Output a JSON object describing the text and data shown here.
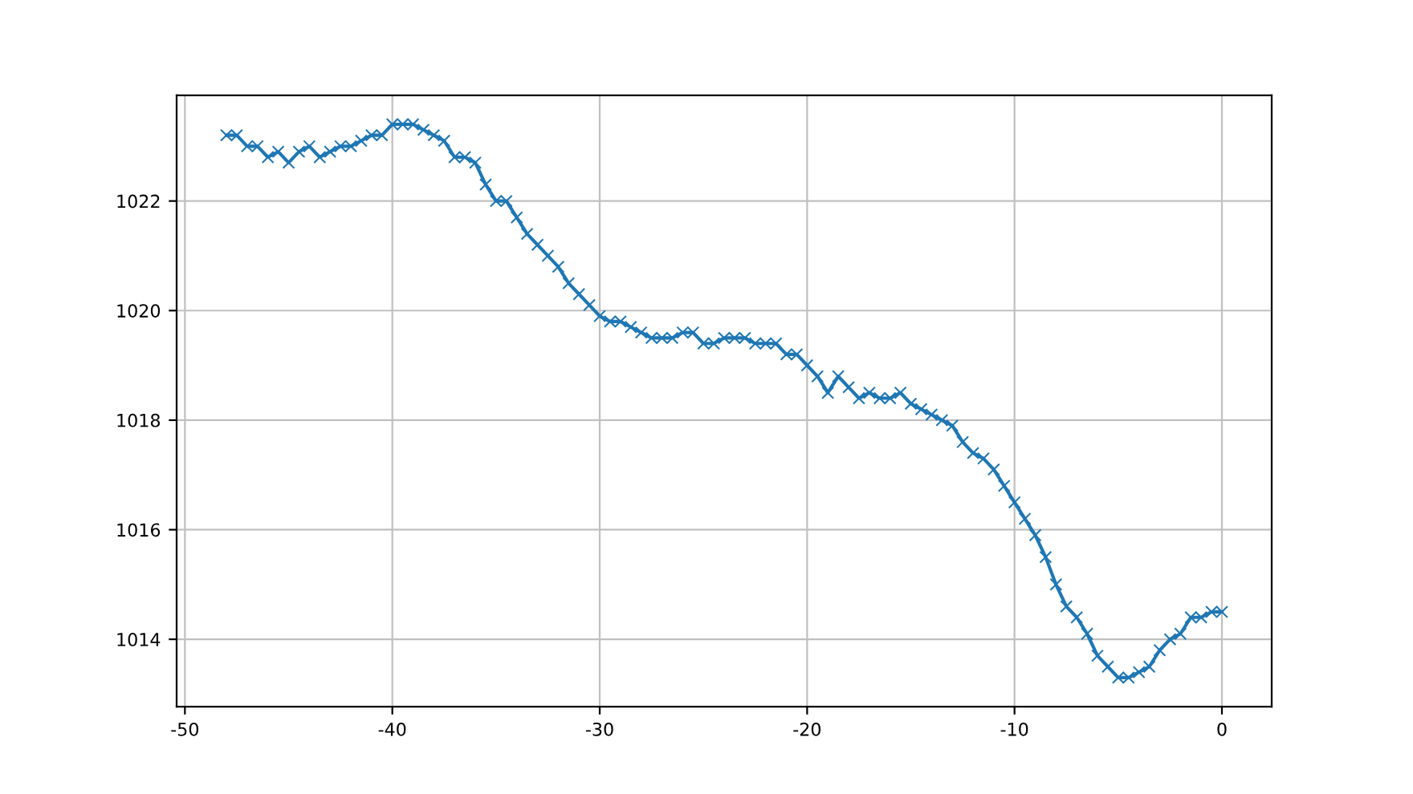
{
  "chart_data": {
    "type": "line",
    "marker": "cross",
    "line_style": "solid",
    "grid": true,
    "xlim": [
      -50.4,
      2.4
    ],
    "ylim": [
      1012.77,
      1023.93
    ],
    "xticks": [
      -50,
      -40,
      -30,
      -20,
      -10,
      0
    ],
    "yticks": [
      1014,
      1016,
      1018,
      1020,
      1022
    ],
    "x": [
      -48,
      -47.5,
      -47,
      -46.5,
      -46,
      -45.5,
      -45,
      -44.5,
      -44,
      -43.5,
      -43,
      -42.5,
      -42,
      -41.5,
      -41,
      -40.5,
      -40,
      -39.5,
      -39,
      -38.5,
      -38,
      -37.5,
      -37,
      -36.5,
      -36,
      -35.5,
      -35,
      -34.5,
      -34,
      -33.5,
      -33,
      -32.5,
      -32,
      -31.5,
      -31,
      -30.5,
      -30,
      -29.5,
      -29,
      -28.5,
      -28,
      -27.5,
      -27,
      -26.5,
      -26,
      -25.5,
      -25,
      -24.5,
      -24,
      -23.5,
      -23,
      -22.5,
      -22,
      -21.5,
      -21,
      -20.5,
      -20,
      -19.5,
      -19,
      -18.5,
      -18,
      -17.5,
      -17,
      -16.5,
      -16,
      -15.5,
      -15,
      -14.5,
      -14,
      -13.5,
      -13,
      -12.5,
      -12,
      -11.5,
      -11,
      -10.5,
      -10,
      -9.5,
      -9,
      -8.5,
      -8,
      -7.5,
      -7,
      -6.5,
      -6,
      -5.5,
      -5,
      -4.5,
      -4,
      -3.5,
      -3,
      -2.5,
      -2,
      -1.5,
      -1,
      -0.5,
      0
    ],
    "series": [
      {
        "color": "#1f77b4",
        "values": [
          1023.2,
          1023.2,
          1023.0,
          1023.0,
          1022.8,
          1022.9,
          1022.7,
          1022.9,
          1023.0,
          1022.8,
          1022.9,
          1023.0,
          1023.0,
          1023.1,
          1023.2,
          1023.2,
          1023.4,
          1023.4,
          1023.4,
          1023.3,
          1023.2,
          1023.1,
          1022.8,
          1022.8,
          1022.7,
          1022.3,
          1022.0,
          1022.0,
          1021.7,
          1021.4,
          1021.2,
          1021.0,
          1020.8,
          1020.5,
          1020.3,
          1020.1,
          1019.9,
          1019.8,
          1019.8,
          1019.7,
          1019.6,
          1019.5,
          1019.5,
          1019.5,
          1019.6,
          1019.6,
          1019.4,
          1019.4,
          1019.5,
          1019.5,
          1019.5,
          1019.4,
          1019.4,
          1019.4,
          1019.2,
          1019.2,
          1019.0,
          1018.8,
          1018.5,
          1018.8,
          1018.6,
          1018.4,
          1018.5,
          1018.4,
          1018.4,
          1018.5,
          1018.3,
          1018.2,
          1018.1,
          1018.0,
          1017.9,
          1017.6,
          1017.4,
          1017.3,
          1017.1,
          1016.8,
          1016.5,
          1016.2,
          1015.9,
          1015.5,
          1015.0,
          1014.6,
          1014.4,
          1014.1,
          1013.7,
          1013.5,
          1013.3,
          1013.3,
          1013.4,
          1013.5,
          1013.8,
          1014.0,
          1014.1,
          1014.4,
          1014.4,
          1014.5,
          1014.5
        ]
      }
    ]
  }
}
